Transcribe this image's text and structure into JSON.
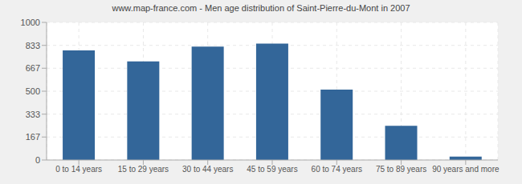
{
  "chart_data": {
    "type": "bar",
    "title": "www.map-france.com - Men age distribution of Saint-Pierre-du-Mont in 2007",
    "categories": [
      "0 to 14 years",
      "15 to 29 years",
      "30 to 44 years",
      "45 to 59 years",
      "60 to 74 years",
      "75 to 89 years",
      "90 years and more"
    ],
    "values": [
      797,
      716,
      824,
      846,
      511,
      248,
      24
    ],
    "color": "#336699",
    "ylim": [
      0,
      1000
    ],
    "yticks": [
      0,
      167,
      333,
      500,
      667,
      833,
      1000
    ],
    "grid": true
  }
}
